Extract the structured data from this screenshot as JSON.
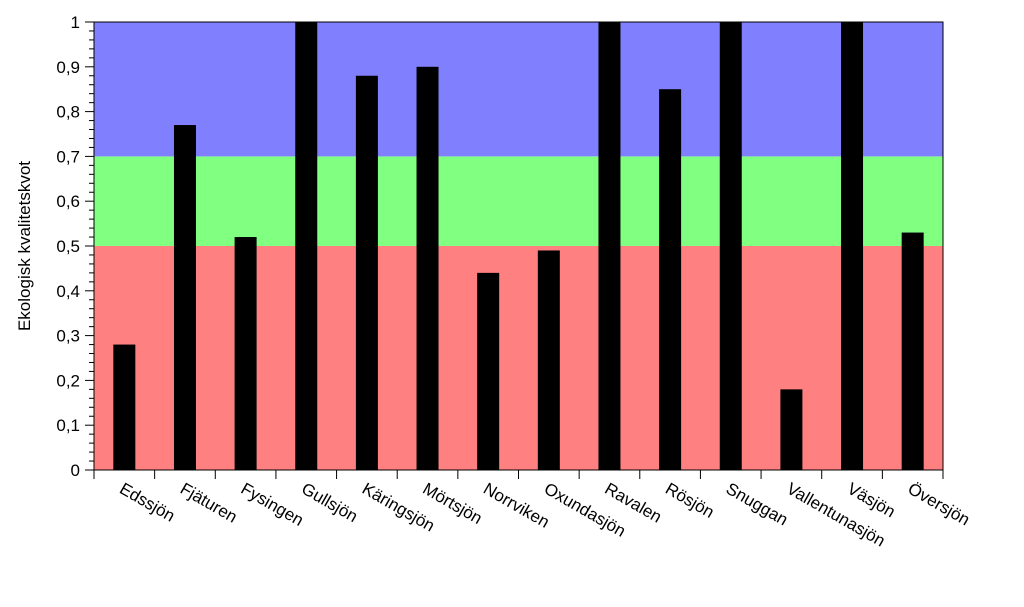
{
  "chart_data": {
    "type": "bar",
    "title": "",
    "xlabel": "",
    "ylabel": "Ekologisk kvalitetskvot",
    "ylim": [
      0,
      1
    ],
    "yticks": [
      0,
      0.1,
      0.2,
      0.3,
      0.4,
      0.5,
      0.6,
      0.7,
      0.8,
      0.9,
      1
    ],
    "ytick_labels": [
      "0",
      "0,1",
      "0,2",
      "0,3",
      "0,4",
      "0,5",
      "0,6",
      "0,7",
      "0,8",
      "0,9",
      "1"
    ],
    "categories": [
      "Edssjön",
      "Fjäturen",
      "Fysingen",
      "Gullsjön",
      "Käringsjön",
      "Mörtsjön",
      "Norrviken",
      "Oxundasjön",
      "Ravalen",
      "Rösjön",
      "Snuggan",
      "Vallentunasjön",
      "Väsjön",
      "Översjön"
    ],
    "values": [
      0.28,
      0.77,
      0.52,
      1.0,
      0.88,
      0.9,
      0.44,
      0.49,
      1.0,
      0.85,
      1.0,
      0.18,
      1.0,
      0.53
    ],
    "bar_color": "#000000",
    "bands": [
      {
        "from": 0,
        "to": 0.5,
        "color": "#ff8080"
      },
      {
        "from": 0.5,
        "to": 0.7,
        "color": "#80ff80"
      },
      {
        "from": 0.7,
        "to": 1.0,
        "color": "#8080ff"
      }
    ],
    "grid": false,
    "legend": "none"
  }
}
